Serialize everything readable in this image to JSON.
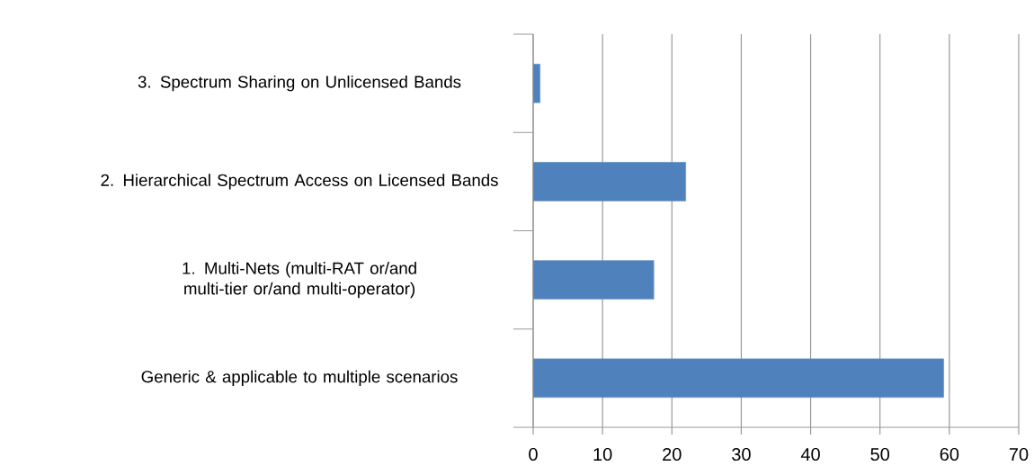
{
  "chart_data": {
    "type": "bar",
    "orientation": "horizontal",
    "categories": [
      "3. Spectrum Sharing on Unlicensed Bands",
      "2. Hierarchical Spectrum Access on Licensed Bands",
      "1. Multi-Nets (multi-RAT or/and multi-tier or/and multi-operator)",
      "Generic & applicable to multiple scenarios"
    ],
    "values": [
      1,
      22,
      17.4,
      59.2
    ],
    "color": "#4f81bd",
    "xlim": [
      0,
      70
    ],
    "xticks": [
      0,
      10,
      20,
      30,
      40,
      50,
      60,
      70
    ],
    "grid": "x"
  }
}
